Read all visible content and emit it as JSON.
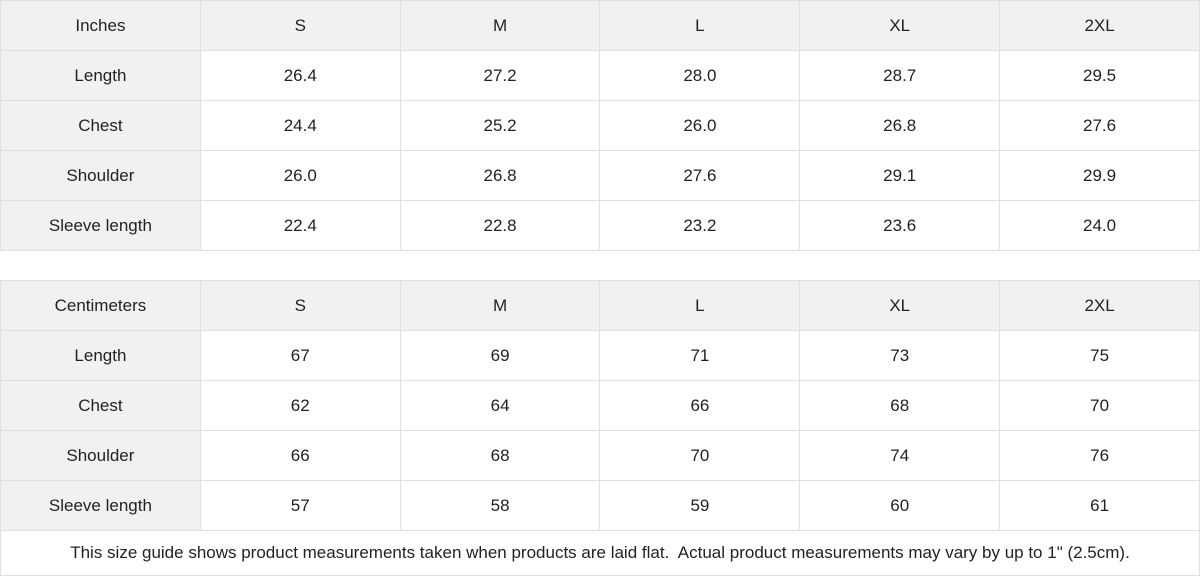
{
  "tables": [
    {
      "id": "inches",
      "unit_label": "Inches",
      "sizes": [
        "S",
        "M",
        "L",
        "XL",
        "2XL"
      ],
      "rows": [
        {
          "label": "Length",
          "values": [
            "26.4",
            "27.2",
            "28.0",
            "28.7",
            "29.5"
          ]
        },
        {
          "label": "Chest",
          "values": [
            "24.4",
            "25.2",
            "26.0",
            "26.8",
            "27.6"
          ]
        },
        {
          "label": "Shoulder",
          "values": [
            "26.0",
            "26.8",
            "27.6",
            "29.1",
            "29.9"
          ]
        },
        {
          "label": "Sleeve length",
          "values": [
            "22.4",
            "22.8",
            "23.2",
            "23.6",
            "24.0"
          ]
        }
      ]
    },
    {
      "id": "centimeters",
      "unit_label": "Centimeters",
      "sizes": [
        "S",
        "M",
        "L",
        "XL",
        "2XL"
      ],
      "rows": [
        {
          "label": "Length",
          "values": [
            "67",
            "69",
            "71",
            "73",
            "75"
          ]
        },
        {
          "label": "Chest",
          "values": [
            "62",
            "64",
            "66",
            "68",
            "70"
          ]
        },
        {
          "label": "Shoulder",
          "values": [
            "66",
            "68",
            "70",
            "74",
            "76"
          ]
        },
        {
          "label": "Sleeve length",
          "values": [
            "57",
            "58",
            "59",
            "60",
            "61"
          ]
        }
      ]
    }
  ],
  "footer": {
    "note": "This size guide shows product measurements taken when products are laid flat.  Actual product measurements may vary by up to 1\" (2.5cm)."
  },
  "colors": {
    "header_bg": "#f1f1f1",
    "border_color": "#e0e0e0",
    "text_color": "#222222",
    "cell_bg": "#ffffff"
  }
}
